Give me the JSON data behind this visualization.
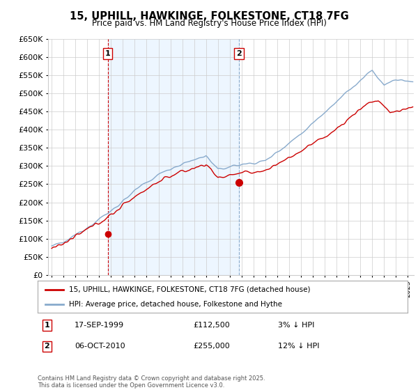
{
  "title": "15, UPHILL, HAWKINGE, FOLKESTONE, CT18 7FG",
  "subtitle": "Price paid vs. HM Land Registry's House Price Index (HPI)",
  "legend_label_red": "15, UPHILL, HAWKINGE, FOLKESTONE, CT18 7FG (detached house)",
  "legend_label_blue": "HPI: Average price, detached house, Folkestone and Hythe",
  "footnote": "Contains HM Land Registry data © Crown copyright and database right 2025.\nThis data is licensed under the Open Government Licence v3.0.",
  "transaction1_date": "17-SEP-1999",
  "transaction1_price": "£112,500",
  "transaction1_hpi": "3% ↓ HPI",
  "transaction2_date": "06-OCT-2010",
  "transaction2_price": "£255,000",
  "transaction2_hpi": "12% ↓ HPI",
  "ylim": [
    0,
    650000
  ],
  "yticks": [
    0,
    50000,
    100000,
    150000,
    200000,
    250000,
    300000,
    350000,
    400000,
    450000,
    500000,
    550000,
    600000,
    650000
  ],
  "color_red": "#cc0000",
  "color_blue": "#88aacc",
  "color_vline1": "#cc0000",
  "color_vline2": "#88aacc",
  "color_grid": "#cccccc",
  "color_shade": "#ddeeff",
  "background": "#ffffff",
  "transaction1_x": 1999.72,
  "transaction2_x": 2010.77,
  "marker1_y": 112500,
  "marker2_y": 255000,
  "xlim_left": 1994.7,
  "xlim_right": 2025.5
}
